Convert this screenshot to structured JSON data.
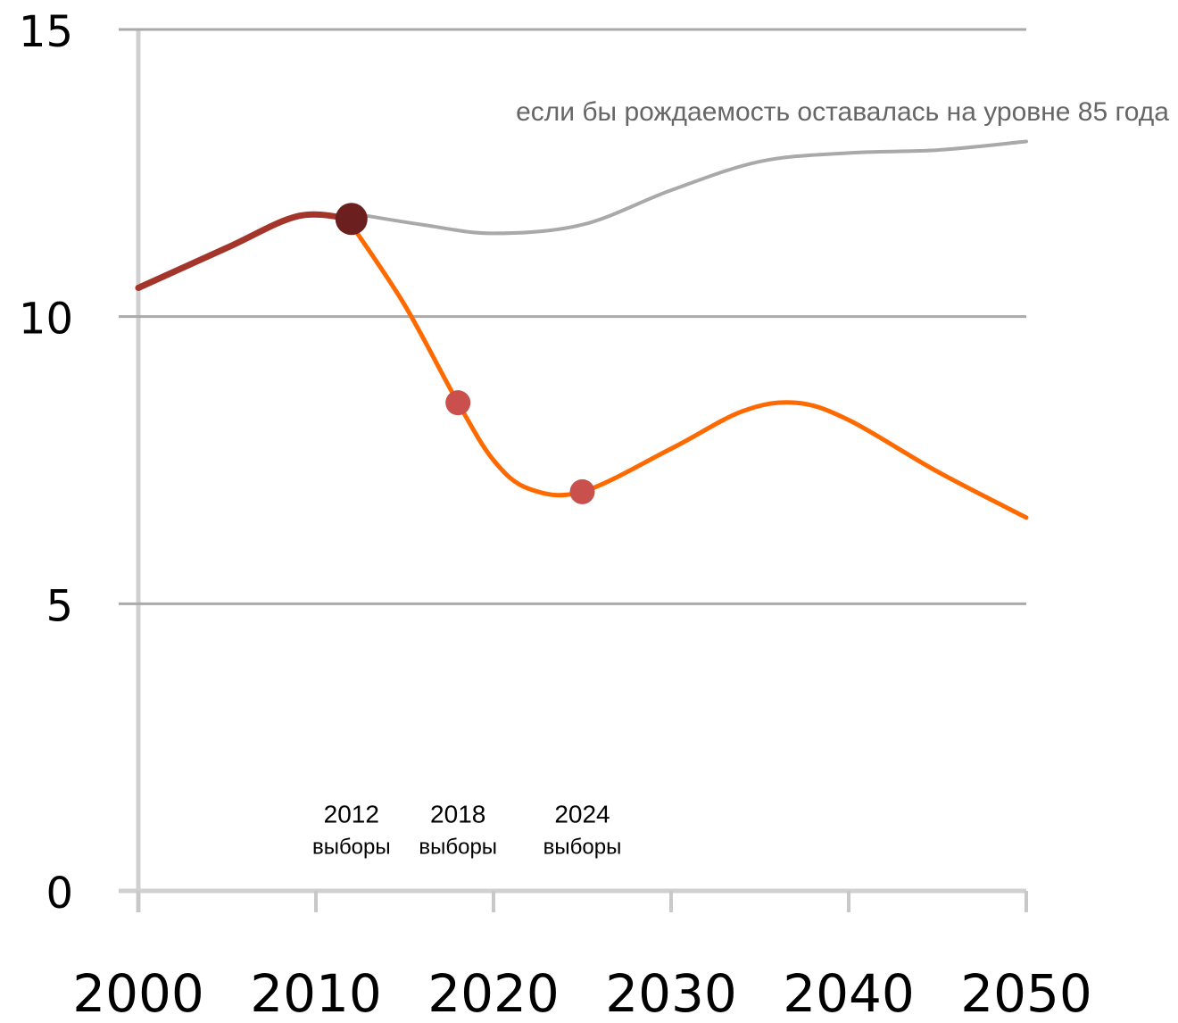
{
  "chart_data": {
    "type": "line",
    "xlim": [
      2000,
      2050
    ],
    "ylim": [
      0,
      15
    ],
    "xticks": [
      2000,
      2010,
      2020,
      2030,
      2040,
      2050
    ],
    "yticks": [
      0,
      5,
      10,
      15
    ],
    "grid": true,
    "series": [
      {
        "name": "если бы рождаемость оставалась на уровне 85 года",
        "color": "#a9a9a9",
        "x": [
          2012,
          2016,
          2020,
          2025,
          2030,
          2035,
          2040,
          2045,
          2050
        ],
        "values": [
          11.8,
          11.6,
          11.45,
          11.6,
          12.2,
          12.7,
          12.85,
          12.9,
          13.05
        ]
      },
      {
        "color": "#a3352b",
        "x": [
          2000,
          2005,
          2009,
          2012
        ],
        "values": [
          10.5,
          11.2,
          11.75,
          11.7
        ]
      },
      {
        "color": "#ff6a00",
        "x": [
          2012,
          2015,
          2018,
          2020,
          2022,
          2025,
          2030,
          2034,
          2037,
          2040,
          2045,
          2050
        ],
        "values": [
          11.6,
          10.2,
          8.5,
          7.5,
          7.0,
          6.95,
          7.7,
          8.35,
          8.5,
          8.2,
          7.3,
          6.5
        ]
      }
    ],
    "points": {
      "x": [
        2012,
        2018,
        2025
      ],
      "values": [
        11.7,
        8.5,
        6.95
      ],
      "colors": [
        "#6b1f1f",
        "#c9504c",
        "#c9504c"
      ]
    },
    "annotations": [
      {
        "year": "2012",
        "text": "выборы"
      },
      {
        "year": "2018",
        "text": "выборы"
      },
      {
        "year": "2024",
        "text": "выборы"
      }
    ]
  }
}
